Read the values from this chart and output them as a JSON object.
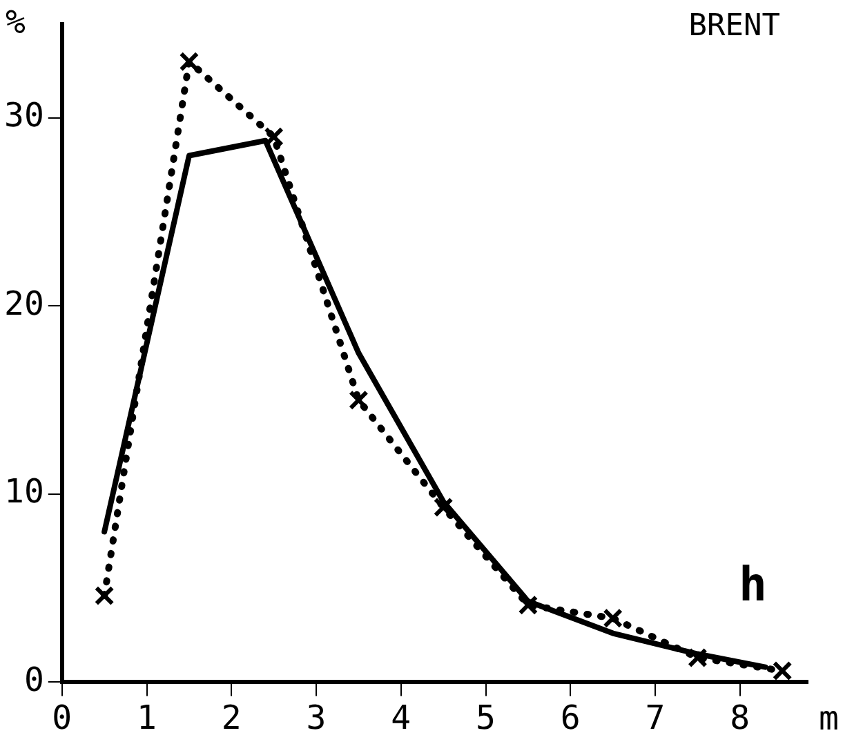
{
  "chart_data": {
    "type": "line",
    "xlabel": "m",
    "ylabel": "%",
    "annotations": [
      "BRENT",
      "h"
    ],
    "xlim": [
      0,
      8.8
    ],
    "xticks": [
      0,
      1,
      2,
      3,
      4,
      5,
      6,
      7,
      8
    ],
    "ylim": [
      0,
      35
    ],
    "yticks": [
      0,
      10,
      20,
      30
    ],
    "grid": false,
    "legend": false,
    "series": [
      {
        "color": "#000000",
        "x": [
          0.5,
          1.5,
          2.4,
          3.5,
          4.5,
          5.5,
          6.5,
          7.5,
          8.3
        ],
        "values": [
          8,
          28,
          28.8,
          17.5,
          9.6,
          4.3,
          2.6,
          1.5,
          0.8
        ],
        "line_style": "solid",
        "marker": "none"
      },
      {
        "color": "#000000",
        "x": [
          0.5,
          1.5,
          2.5,
          3.5,
          4.5,
          5.5,
          6.5,
          7.5,
          8.5
        ],
        "values": [
          4.6,
          33,
          29,
          15,
          9.3,
          4.1,
          3.4,
          1.3,
          0.6
        ],
        "line_style": "dotted",
        "marker": "cross"
      }
    ]
  }
}
